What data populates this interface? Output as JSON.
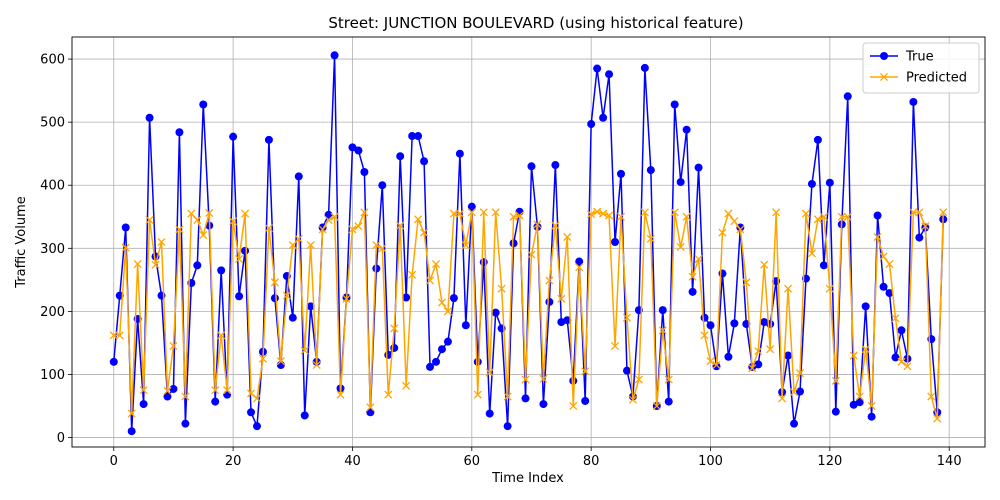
{
  "chart_data": {
    "type": "line",
    "title": "Street: JUNCTION BOULEVARD (using historical feature)",
    "xlabel": "Time Index",
    "ylabel": "Traffic Volume",
    "xlim": [
      -7,
      146
    ],
    "ylim": [
      -15,
      635
    ],
    "xticks": [
      0,
      20,
      40,
      60,
      80,
      100,
      120,
      140
    ],
    "yticks": [
      0,
      100,
      200,
      300,
      400,
      500,
      600
    ],
    "grid": true,
    "legend_position": "top-right",
    "series": [
      {
        "name": "True",
        "color": "#0000ff",
        "marker": "circle",
        "values": [
          120,
          225,
          333,
          10,
          188,
          53,
          507,
          287,
          225,
          65,
          77,
          484,
          22,
          245,
          273,
          528,
          336,
          57,
          265,
          68,
          477,
          224,
          296,
          40,
          18,
          136,
          472,
          221,
          115,
          256,
          190,
          414,
          35,
          208,
          120,
          333,
          353,
          606,
          78,
          222,
          460,
          455,
          421,
          40,
          268,
          400,
          131,
          142,
          446,
          222,
          478,
          478,
          438,
          112,
          120,
          140,
          152,
          221,
          450,
          178,
          366,
          120,
          278,
          38,
          198,
          173,
          18,
          308,
          358,
          62,
          430,
          334,
          53,
          215,
          432,
          183,
          186,
          90,
          279,
          58,
          497,
          585,
          507,
          576,
          310,
          418,
          106,
          65,
          202,
          586,
          424,
          50,
          202,
          57,
          528,
          405,
          488,
          231,
          428,
          190,
          178,
          113,
          260,
          128,
          181,
          333,
          180,
          112,
          116,
          183,
          180,
          248,
          72,
          130,
          22,
          73,
          252,
          402,
          472,
          273,
          404,
          41,
          338,
          541,
          52,
          56,
          208,
          33,
          352,
          239,
          229,
          127,
          170,
          125,
          532,
          317,
          333,
          156,
          40,
          346
        ]
      },
      {
        "name": "Predicted",
        "color": "#ffa500",
        "marker": "x",
        "values": [
          162,
          162,
          301,
          38,
          275,
          75,
          345,
          274,
          310,
          74,
          145,
          330,
          65,
          355,
          345,
          321,
          356,
          75,
          162,
          75,
          343,
          283,
          355,
          70,
          62,
          125,
          332,
          246,
          121,
          225,
          305,
          315,
          138,
          305,
          115,
          330,
          345,
          350,
          68,
          220,
          330,
          335,
          357,
          48,
          305,
          300,
          68,
          173,
          336,
          82,
          258,
          346,
          325,
          249,
          275,
          214,
          200,
          355,
          355,
          305,
          357,
          68,
          357,
          103,
          357,
          236,
          65,
          350,
          352,
          92,
          290,
          338,
          93,
          249,
          336,
          220,
          318,
          50,
          270,
          105,
          354,
          358,
          355,
          352,
          145,
          350,
          190,
          60,
          92,
          357,
          315,
          50,
          170,
          92,
          357,
          302,
          350,
          255,
          283,
          162,
          121,
          115,
          325,
          355,
          343,
          330,
          246,
          110,
          137,
          274,
          140,
          357,
          62,
          236,
          72,
          102,
          355,
          292,
          346,
          350,
          236,
          90,
          350,
          350,
          130,
          65,
          140,
          50,
          318,
          287,
          275,
          189,
          120,
          113,
          357,
          357,
          335,
          65,
          30,
          357
        ]
      }
    ]
  }
}
